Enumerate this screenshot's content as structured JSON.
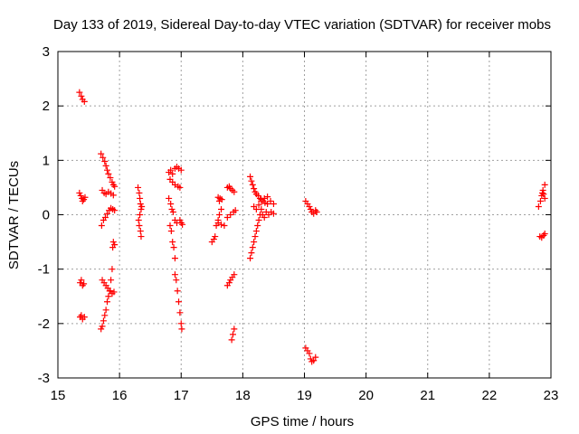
{
  "chart_data": {
    "type": "scatter",
    "title": "Day 133 of 2019, Sidereal Day-to-day VTEC variation (SDTVAR) for receiver mobs",
    "xlabel": "GPS time / hours",
    "ylabel": "SDTVAR / TECUs",
    "xlim": [
      15,
      23
    ],
    "ylim": [
      -3,
      3
    ],
    "xticks": [
      "15",
      "16",
      "17",
      "18",
      "19",
      "20",
      "21",
      "22",
      "23"
    ],
    "yticks": [
      "-3",
      "-2",
      "-1",
      "0",
      "1",
      "2",
      "3"
    ],
    "grid": true,
    "marker": "+",
    "series": [
      {
        "name": "SDTVAR",
        "color": "#ff0000",
        "points": [
          [
            15.35,
            2.25
          ],
          [
            15.38,
            2.18
          ],
          [
            15.4,
            2.12
          ],
          [
            15.43,
            2.08
          ],
          [
            15.35,
            0.4
          ],
          [
            15.37,
            0.35
          ],
          [
            15.39,
            0.3
          ],
          [
            15.4,
            0.25
          ],
          [
            15.42,
            0.28
          ],
          [
            15.44,
            0.32
          ],
          [
            15.36,
            -1.25
          ],
          [
            15.38,
            -1.2
          ],
          [
            15.4,
            -1.3
          ],
          [
            15.42,
            -1.27
          ],
          [
            15.36,
            -1.88
          ],
          [
            15.38,
            -1.85
          ],
          [
            15.4,
            -1.92
          ],
          [
            15.43,
            -1.88
          ],
          [
            15.7,
            1.12
          ],
          [
            15.73,
            1.05
          ],
          [
            15.76,
            0.98
          ],
          [
            15.78,
            0.9
          ],
          [
            15.8,
            0.82
          ],
          [
            15.82,
            0.75
          ],
          [
            15.85,
            0.68
          ],
          [
            15.88,
            0.6
          ],
          [
            15.9,
            0.55
          ],
          [
            15.92,
            0.52
          ],
          [
            15.72,
            0.45
          ],
          [
            15.75,
            0.4
          ],
          [
            15.78,
            0.38
          ],
          [
            15.82,
            0.42
          ],
          [
            15.86,
            0.39
          ],
          [
            15.9,
            0.36
          ],
          [
            15.71,
            -0.2
          ],
          [
            15.74,
            -0.1
          ],
          [
            15.77,
            -0.05
          ],
          [
            15.8,
            0.02
          ],
          [
            15.83,
            0.08
          ],
          [
            15.86,
            0.12
          ],
          [
            15.89,
            0.1
          ],
          [
            15.92,
            0.08
          ],
          [
            15.9,
            -0.5
          ],
          [
            15.92,
            -0.55
          ],
          [
            15.89,
            -0.6
          ],
          [
            15.7,
            -2.1
          ],
          [
            15.72,
            -2.05
          ],
          [
            15.74,
            -1.95
          ],
          [
            15.76,
            -1.85
          ],
          [
            15.78,
            -1.75
          ],
          [
            15.8,
            -1.6
          ],
          [
            15.82,
            -1.5
          ],
          [
            15.84,
            -1.4
          ],
          [
            15.86,
            -1.2
          ],
          [
            15.88,
            -1.0
          ],
          [
            15.72,
            -1.2
          ],
          [
            15.75,
            -1.25
          ],
          [
            15.78,
            -1.3
          ],
          [
            15.81,
            -1.35
          ],
          [
            15.85,
            -1.4
          ],
          [
            15.88,
            -1.45
          ],
          [
            15.91,
            -1.42
          ],
          [
            16.3,
            0.5
          ],
          [
            16.32,
            0.4
          ],
          [
            16.33,
            0.3
          ],
          [
            16.34,
            0.2
          ],
          [
            16.35,
            0.1
          ],
          [
            16.33,
            0.0
          ],
          [
            16.31,
            -0.1
          ],
          [
            16.32,
            -0.2
          ],
          [
            16.34,
            -0.3
          ],
          [
            16.35,
            -0.4
          ],
          [
            16.36,
            0.15
          ],
          [
            16.8,
            0.78
          ],
          [
            16.83,
            0.82
          ],
          [
            16.86,
            0.75
          ],
          [
            16.9,
            0.85
          ],
          [
            16.93,
            0.88
          ],
          [
            16.96,
            0.85
          ],
          [
            17.0,
            0.82
          ],
          [
            16.82,
            0.65
          ],
          [
            16.86,
            0.6
          ],
          [
            16.9,
            0.55
          ],
          [
            16.95,
            0.52
          ],
          [
            16.98,
            0.5
          ],
          [
            16.8,
            0.3
          ],
          [
            16.83,
            0.2
          ],
          [
            16.85,
            0.1
          ],
          [
            16.87,
            0.05
          ],
          [
            16.9,
            -0.1
          ],
          [
            16.93,
            -0.15
          ],
          [
            16.82,
            -0.2
          ],
          [
            16.84,
            -0.3
          ],
          [
            16.86,
            -0.5
          ],
          [
            16.88,
            -0.6
          ],
          [
            16.9,
            -0.8
          ],
          [
            16.9,
            -1.1
          ],
          [
            16.92,
            -1.2
          ],
          [
            16.94,
            -1.4
          ],
          [
            16.96,
            -1.6
          ],
          [
            16.98,
            -1.8
          ],
          [
            17.0,
            -2.0
          ],
          [
            17.01,
            -2.1
          ],
          [
            16.98,
            -0.1
          ],
          [
            17.0,
            -0.15
          ],
          [
            17.02,
            -0.18
          ],
          [
            17.5,
            -0.5
          ],
          [
            17.53,
            -0.45
          ],
          [
            17.55,
            -0.4
          ],
          [
            17.57,
            -0.2
          ],
          [
            17.6,
            -0.1
          ],
          [
            17.62,
            0.0
          ],
          [
            17.65,
            0.1
          ],
          [
            17.62,
            0.25
          ],
          [
            17.6,
            0.32
          ],
          [
            17.63,
            0.3
          ],
          [
            17.66,
            0.28
          ],
          [
            17.6,
            -0.15
          ],
          [
            17.65,
            -0.18
          ],
          [
            17.7,
            -0.2
          ],
          [
            17.75,
            -0.05
          ],
          [
            17.8,
            0.0
          ],
          [
            17.85,
            0.05
          ],
          [
            17.88,
            0.08
          ],
          [
            17.75,
            0.5
          ],
          [
            17.78,
            0.52
          ],
          [
            17.8,
            0.48
          ],
          [
            17.83,
            0.45
          ],
          [
            17.86,
            0.42
          ],
          [
            17.75,
            -1.3
          ],
          [
            17.78,
            -1.25
          ],
          [
            17.8,
            -1.2
          ],
          [
            17.83,
            -1.15
          ],
          [
            17.86,
            -1.1
          ],
          [
            17.82,
            -2.3
          ],
          [
            17.84,
            -2.2
          ],
          [
            17.86,
            -2.1
          ],
          [
            18.12,
            0.7
          ],
          [
            18.14,
            0.62
          ],
          [
            18.16,
            0.55
          ],
          [
            18.18,
            0.48
          ],
          [
            18.2,
            0.42
          ],
          [
            18.22,
            0.38
          ],
          [
            18.25,
            0.35
          ],
          [
            18.28,
            0.3
          ],
          [
            18.3,
            0.28
          ],
          [
            18.33,
            0.25
          ],
          [
            18.36,
            0.22
          ],
          [
            18.4,
            0.2
          ],
          [
            18.45,
            0.25
          ],
          [
            18.5,
            0.2
          ],
          [
            18.12,
            -0.8
          ],
          [
            18.14,
            -0.7
          ],
          [
            18.16,
            -0.6
          ],
          [
            18.18,
            -0.5
          ],
          [
            18.2,
            -0.4
          ],
          [
            18.22,
            -0.3
          ],
          [
            18.24,
            -0.2
          ],
          [
            18.26,
            -0.1
          ],
          [
            18.28,
            0.0
          ],
          [
            18.3,
            0.1
          ],
          [
            18.32,
            0.0
          ],
          [
            18.35,
            -0.05
          ],
          [
            18.38,
            0.05
          ],
          [
            18.42,
            0.0
          ],
          [
            18.46,
            0.05
          ],
          [
            18.5,
            0.02
          ],
          [
            18.18,
            0.15
          ],
          [
            18.22,
            0.1
          ],
          [
            18.26,
            0.18
          ],
          [
            18.3,
            0.25
          ],
          [
            18.35,
            0.3
          ],
          [
            18.4,
            0.33
          ],
          [
            19.02,
            -2.45
          ],
          [
            19.05,
            -2.5
          ],
          [
            19.08,
            -2.55
          ],
          [
            19.1,
            -2.65
          ],
          [
            19.12,
            -2.7
          ],
          [
            19.15,
            -2.68
          ],
          [
            19.18,
            -2.62
          ],
          [
            19.02,
            0.25
          ],
          [
            19.05,
            0.2
          ],
          [
            19.08,
            0.15
          ],
          [
            19.1,
            0.1
          ],
          [
            19.12,
            0.05
          ],
          [
            19.15,
            0.02
          ],
          [
            19.18,
            0.08
          ],
          [
            19.2,
            0.05
          ],
          [
            22.8,
            0.15
          ],
          [
            22.83,
            0.25
          ],
          [
            22.85,
            0.35
          ],
          [
            22.87,
            0.45
          ],
          [
            22.9,
            0.55
          ],
          [
            22.88,
            0.38
          ],
          [
            22.86,
            0.4
          ],
          [
            22.9,
            0.3
          ],
          [
            22.82,
            -0.4
          ],
          [
            22.85,
            -0.42
          ],
          [
            22.88,
            -0.38
          ],
          [
            22.9,
            -0.35
          ]
        ]
      }
    ]
  }
}
